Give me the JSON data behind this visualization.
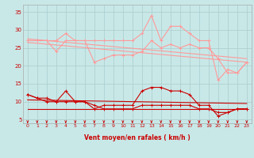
{
  "bg_color": "#c8e8e8",
  "grid_color": "#aacccc",
  "xlim": [
    -0.5,
    23.5
  ],
  "ylim": [
    4,
    37
  ],
  "yticks": [
    5,
    10,
    15,
    20,
    25,
    30,
    35
  ],
  "xticks": [
    0,
    1,
    2,
    3,
    4,
    5,
    6,
    7,
    8,
    9,
    10,
    11,
    12,
    13,
    14,
    15,
    16,
    17,
    18,
    19,
    20,
    21,
    22,
    23
  ],
  "xlabel": "Vent moyen/en rafales ( km/h )",
  "xlabel_color": "#cc0000",
  "tick_color": "#cc0000",
  "arrow_color": "#cc0000",
  "line_rafales": {
    "x": [
      0,
      1,
      2,
      3,
      4,
      5,
      6,
      7,
      8,
      9,
      10,
      11,
      12,
      13,
      14,
      15,
      16,
      17,
      18,
      19,
      20,
      21,
      22,
      23
    ],
    "y": [
      27,
      27,
      27,
      27,
      29,
      27,
      27,
      27,
      27,
      27,
      27,
      27,
      29,
      34,
      27,
      31,
      31,
      29,
      27,
      27,
      16,
      19,
      18,
      21
    ],
    "color": "#ff9999",
    "lw": 0.8,
    "marker": "+"
  },
  "line_rafales2": {
    "x": [
      0,
      1,
      2,
      3,
      4,
      5,
      6,
      7,
      8,
      9,
      10,
      11,
      12,
      13,
      14,
      15,
      16,
      17,
      18,
      19,
      20,
      21,
      22,
      23
    ],
    "y": [
      27,
      27,
      27,
      24,
      27,
      27,
      27,
      21,
      22,
      23,
      23,
      23,
      24,
      27,
      25,
      26,
      25,
      26,
      25,
      25,
      22,
      18,
      18,
      21
    ],
    "color": "#ff9999",
    "lw": 0.8,
    "marker": "+"
  },
  "line_trend1": {
    "x": [
      0,
      23
    ],
    "y": [
      27.5,
      22
    ],
    "color": "#ff9999",
    "lw": 0.8,
    "marker": null
  },
  "line_trend2": {
    "x": [
      0,
      23
    ],
    "y": [
      26.5,
      21
    ],
    "color": "#ff9999",
    "lw": 0.8,
    "marker": null
  },
  "line_moyen": {
    "x": [
      0,
      1,
      2,
      3,
      4,
      5,
      6,
      7,
      8,
      9,
      10,
      11,
      12,
      13,
      14,
      15,
      16,
      17,
      18,
      19,
      20,
      21,
      22,
      23
    ],
    "y": [
      12,
      11,
      11,
      10,
      13,
      10,
      10,
      8,
      9,
      9,
      9,
      9,
      13,
      14,
      14,
      13,
      13,
      12,
      9,
      9,
      6,
      7,
      8,
      8
    ],
    "color": "#cc0000",
    "lw": 0.8,
    "marker": "+"
  },
  "line_moyen2": {
    "x": [
      0,
      1,
      2,
      3,
      4,
      5,
      6,
      7,
      8,
      9,
      10,
      11,
      12,
      13,
      14,
      15,
      16,
      17,
      18,
      19,
      20,
      21,
      22,
      23
    ],
    "y": [
      12,
      11,
      10,
      10,
      10,
      10,
      10,
      9,
      8,
      8,
      8,
      8,
      9,
      9,
      9,
      9,
      9,
      9,
      8,
      8,
      7,
      7,
      8,
      8
    ],
    "color": "#cc0000",
    "lw": 0.8,
    "marker": "+"
  },
  "line_trend3": {
    "x": [
      0,
      23
    ],
    "y": [
      10.5,
      9.5
    ],
    "color": "#cc0000",
    "lw": 0.8,
    "marker": null
  },
  "line_trend4": {
    "x": [
      0,
      23
    ],
    "y": [
      8,
      8
    ],
    "color": "#cc0000",
    "lw": 0.8,
    "marker": null
  }
}
